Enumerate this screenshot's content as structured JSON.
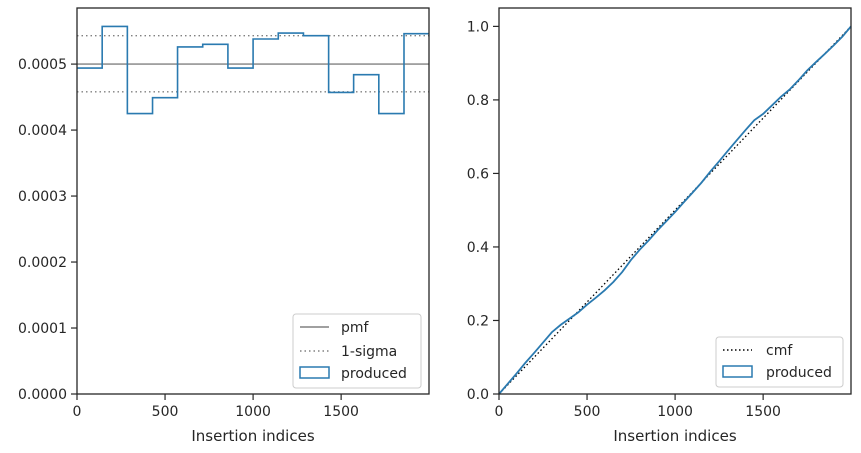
{
  "chart_data": [
    {
      "type": "line",
      "xlabel": "Insertion indices",
      "ylabel": "",
      "xlim": [
        0,
        1999
      ],
      "ylim": [
        0,
        0.000585
      ],
      "xticks": [
        0,
        500,
        1000,
        1500
      ],
      "xtick_labels": [
        "0",
        "500",
        "1000",
        "1500"
      ],
      "yticks": [
        0,
        0.0001,
        0.0002,
        0.0003,
        0.0004,
        0.0005
      ],
      "ytick_labels": [
        "0.0000",
        "0.0001",
        "0.0002",
        "0.0003",
        "0.0004",
        "0.0005"
      ],
      "grid": false,
      "legend_position": "lower-right",
      "hlines": [
        {
          "name": "pmf",
          "y": 0.0005,
          "style": "solid",
          "color": "#808080"
        },
        {
          "name": "1-sigma",
          "y": 0.000543,
          "style": "dotted",
          "color": "#808080"
        },
        {
          "name": "1-sigma",
          "y": 0.000458,
          "style": "dotted",
          "color": "#808080"
        }
      ],
      "series": [
        {
          "name": "produced",
          "style": "step-histogram",
          "color": "#2a7ab0",
          "bin_edges": [
            0,
            143,
            286,
            429,
            571,
            714,
            857,
            1000,
            1143,
            1286,
            1429,
            1571,
            1714,
            1857,
            1999
          ],
          "values": [
            0.000494,
            0.000557,
            0.000425,
            0.000449,
            0.000526,
            0.00053,
            0.000494,
            0.000538,
            0.000547,
            0.000543,
            0.000457,
            0.000484,
            0.000425,
            0.000546
          ]
        }
      ],
      "legend": [
        {
          "label": "pmf",
          "kind": "solid-line",
          "color": "#808080"
        },
        {
          "label": "1-sigma",
          "kind": "dotted-line",
          "color": "#808080"
        },
        {
          "label": "produced",
          "kind": "patch",
          "color": "#2a7ab0"
        }
      ]
    },
    {
      "type": "line",
      "xlabel": "Insertion indices",
      "ylabel": "",
      "xlim": [
        0,
        1999
      ],
      "ylim": [
        0,
        1.05
      ],
      "xticks": [
        0,
        500,
        1000,
        1500
      ],
      "xtick_labels": [
        "0",
        "500",
        "1000",
        "1500"
      ],
      "yticks": [
        0,
        0.2,
        0.4,
        0.6,
        0.8,
        1.0
      ],
      "ytick_labels": [
        "0.0",
        "0.2",
        "0.4",
        "0.6",
        "0.8",
        "1.0"
      ],
      "grid": false,
      "legend_position": "lower-right",
      "series": [
        {
          "name": "cmf",
          "style": "dotted",
          "color": "#000000",
          "x": [
            0,
            1999
          ],
          "y": [
            0,
            1.0
          ]
        },
        {
          "name": "produced",
          "style": "solid",
          "color": "#2a7ab0",
          "x": [
            0,
            50,
            100,
            150,
            200,
            250,
            300,
            350,
            400,
            450,
            500,
            550,
            600,
            650,
            700,
            750,
            800,
            850,
            900,
            950,
            1000,
            1050,
            1100,
            1150,
            1200,
            1250,
            1300,
            1350,
            1400,
            1450,
            1500,
            1550,
            1600,
            1650,
            1700,
            1750,
            1800,
            1850,
            1900,
            1950,
            1999
          ],
          "y": [
            0,
            0.028,
            0.056,
            0.085,
            0.112,
            0.14,
            0.168,
            0.188,
            0.205,
            0.222,
            0.243,
            0.262,
            0.282,
            0.305,
            0.332,
            0.365,
            0.393,
            0.418,
            0.445,
            0.47,
            0.495,
            0.522,
            0.548,
            0.575,
            0.605,
            0.633,
            0.662,
            0.69,
            0.718,
            0.745,
            0.762,
            0.785,
            0.808,
            0.828,
            0.853,
            0.88,
            0.903,
            0.925,
            0.948,
            0.972,
            1.0
          ]
        }
      ],
      "legend": [
        {
          "label": "cmf",
          "kind": "dotted-line",
          "color": "#000000"
        },
        {
          "label": "produced",
          "kind": "patch",
          "color": "#2a7ab0"
        }
      ]
    }
  ]
}
